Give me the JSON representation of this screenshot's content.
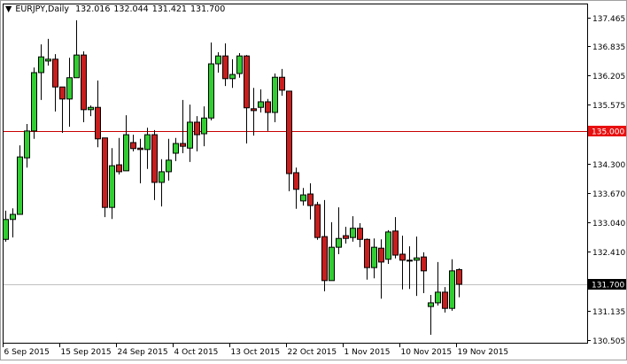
{
  "header": {
    "symbol_label": "EURJPY,Daily",
    "ohlc": [
      "132.016",
      "132.044",
      "131.421",
      "131.700"
    ],
    "menu_icon": "triangle-down-icon"
  },
  "colors": {
    "bull": "#32cd32",
    "bear": "#c81e1e",
    "outline": "#000000",
    "level_line": "#c80000",
    "bid_line": "#c0c0c0",
    "level_label_bg": "#e81010",
    "bid_label_bg": "#000000"
  },
  "chart_data": {
    "type": "candlestick",
    "title": "EURJPY,Daily",
    "ylim": [
      130.505,
      137.465
    ],
    "grid": false,
    "y_ticks": [
      "137.465",
      "136.835",
      "136.205",
      "135.575",
      "134.300",
      "133.670",
      "133.040",
      "132.410",
      "131.135",
      "130.505"
    ],
    "x_ticks": [
      "6 Sep 2015",
      "15 Sep 2015",
      "24 Sep 2015",
      "4 Oct 2015",
      "13 Oct 2015",
      "22 Oct 2015",
      "1 Nov 2015",
      "10 Nov 2015",
      "19 Nov 2015"
    ],
    "horizontal_levels": [
      {
        "value": 135.0,
        "label": "135.000",
        "kind": "level"
      },
      {
        "value": 131.7,
        "label": "131.700",
        "kind": "bid"
      }
    ],
    "ohlc": [
      [
        132.67,
        133.29,
        132.62,
        133.1
      ],
      [
        133.1,
        133.34,
        132.71,
        133.21
      ],
      [
        133.21,
        134.7,
        133.21,
        134.45
      ],
      [
        134.43,
        135.16,
        134.22,
        135.01
      ],
      [
        135.01,
        136.38,
        134.84,
        136.27
      ],
      [
        136.27,
        136.88,
        135.68,
        136.61
      ],
      [
        136.52,
        137.0,
        136.42,
        136.56
      ],
      [
        136.56,
        136.67,
        135.43,
        135.96
      ],
      [
        135.96,
        135.96,
        134.97,
        135.7
      ],
      [
        135.7,
        136.59,
        135.1,
        136.16
      ],
      [
        136.16,
        137.4,
        136.16,
        136.65
      ],
      [
        136.65,
        136.73,
        135.2,
        135.47
      ],
      [
        135.47,
        135.56,
        135.33,
        135.52
      ],
      [
        135.52,
        136.1,
        134.66,
        134.84
      ],
      [
        134.86,
        134.86,
        133.15,
        133.36
      ],
      [
        133.36,
        134.64,
        133.11,
        134.26
      ],
      [
        134.28,
        134.86,
        134.07,
        134.13
      ],
      [
        134.15,
        135.35,
        134.15,
        134.93
      ],
      [
        134.76,
        134.93,
        134.57,
        134.63
      ],
      [
        134.64,
        134.84,
        133.88,
        134.61
      ],
      [
        134.61,
        135.08,
        134.19,
        134.93
      ],
      [
        134.93,
        135.03,
        133.52,
        133.9
      ],
      [
        133.9,
        134.4,
        133.38,
        134.13
      ],
      [
        134.13,
        134.84,
        133.94,
        134.38
      ],
      [
        134.53,
        134.86,
        134.36,
        134.74
      ],
      [
        134.74,
        135.68,
        134.53,
        134.68
      ],
      [
        134.64,
        135.58,
        134.34,
        135.2
      ],
      [
        135.2,
        135.33,
        134.57,
        134.93
      ],
      [
        134.95,
        135.54,
        134.68,
        135.29
      ],
      [
        135.29,
        136.92,
        135.24,
        136.46
      ],
      [
        136.46,
        136.71,
        136.27,
        136.63
      ],
      [
        136.63,
        136.9,
        135.98,
        136.14
      ],
      [
        136.14,
        136.56,
        135.94,
        136.23
      ],
      [
        136.25,
        136.69,
        136.16,
        136.63
      ],
      [
        136.63,
        136.65,
        134.74,
        135.51
      ],
      [
        135.49,
        135.94,
        134.91,
        135.45
      ],
      [
        135.52,
        135.91,
        135.41,
        135.64
      ],
      [
        135.64,
        135.7,
        135.01,
        135.41
      ],
      [
        135.41,
        136.25,
        135.2,
        136.17
      ],
      [
        136.17,
        136.35,
        135.77,
        135.89
      ],
      [
        135.87,
        135.87,
        133.71,
        134.09
      ],
      [
        134.11,
        134.22,
        133.33,
        133.75
      ],
      [
        133.5,
        133.78,
        133.4,
        133.63
      ],
      [
        133.65,
        133.88,
        133.1,
        133.4
      ],
      [
        133.42,
        133.48,
        132.66,
        132.71
      ],
      [
        132.73,
        133.52,
        131.55,
        131.78
      ],
      [
        131.78,
        133.04,
        131.78,
        132.5
      ],
      [
        132.5,
        133.36,
        132.35,
        132.69
      ],
      [
        132.75,
        132.94,
        132.58,
        132.69
      ],
      [
        132.71,
        133.17,
        132.62,
        132.91
      ],
      [
        132.91,
        133.02,
        132.5,
        132.67
      ],
      [
        132.67,
        132.69,
        131.8,
        132.06
      ],
      [
        132.06,
        132.69,
        131.83,
        132.5
      ],
      [
        132.48,
        132.67,
        131.39,
        132.18
      ],
      [
        132.24,
        132.87,
        132.14,
        132.83
      ],
      [
        132.85,
        133.15,
        132.26,
        132.33
      ],
      [
        132.35,
        132.75,
        131.59,
        132.22
      ],
      [
        132.22,
        132.52,
        131.6,
        132.22
      ],
      [
        132.22,
        132.73,
        131.45,
        132.27
      ],
      [
        132.29,
        132.39,
        131.51,
        131.99
      ],
      [
        131.22,
        131.47,
        130.61,
        131.3
      ],
      [
        131.3,
        132.18,
        131.24,
        131.53
      ],
      [
        131.53,
        131.64,
        131.09,
        131.18
      ],
      [
        131.18,
        132.24,
        131.13,
        131.99
      ],
      [
        132.016,
        132.044,
        131.421,
        131.7
      ]
    ]
  }
}
